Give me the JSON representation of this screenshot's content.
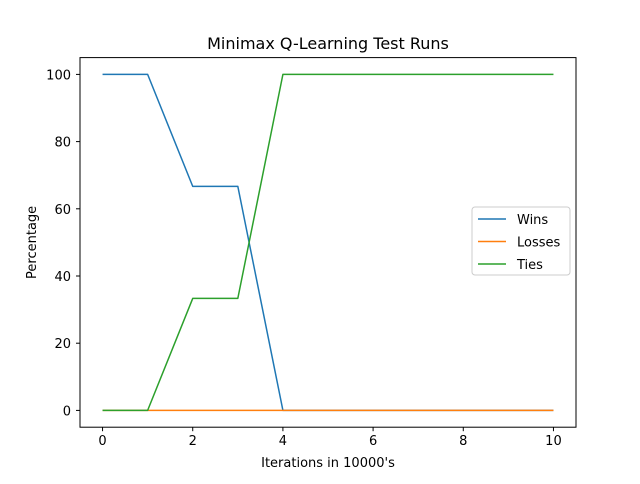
{
  "chart_data": {
    "type": "line",
    "title": "Minimax Q-Learning Test Runs",
    "xlabel": "Iterations in 10000's",
    "ylabel": "Percentage",
    "x": [
      0,
      1,
      2,
      3,
      4,
      5,
      6,
      7,
      8,
      9,
      10
    ],
    "xlim": [
      -0.5,
      10.5
    ],
    "ylim": [
      -5,
      105
    ],
    "xticks": [
      0,
      2,
      4,
      6,
      8,
      10
    ],
    "yticks": [
      0,
      20,
      40,
      60,
      80,
      100
    ],
    "grid": false,
    "legend_position": "center-right",
    "series": [
      {
        "name": "Wins",
        "color": "#1f77b4",
        "values": [
          100,
          100,
          66.67,
          66.67,
          0,
          0,
          0,
          0,
          0,
          0,
          0
        ]
      },
      {
        "name": "Losses",
        "color": "#ff7f0e",
        "values": [
          0,
          0,
          0,
          0,
          0,
          0,
          0,
          0,
          0,
          0,
          0
        ]
      },
      {
        "name": "Ties",
        "color": "#2ca02c",
        "values": [
          0,
          0,
          33.33,
          33.33,
          100,
          100,
          100,
          100,
          100,
          100,
          100
        ]
      }
    ]
  }
}
